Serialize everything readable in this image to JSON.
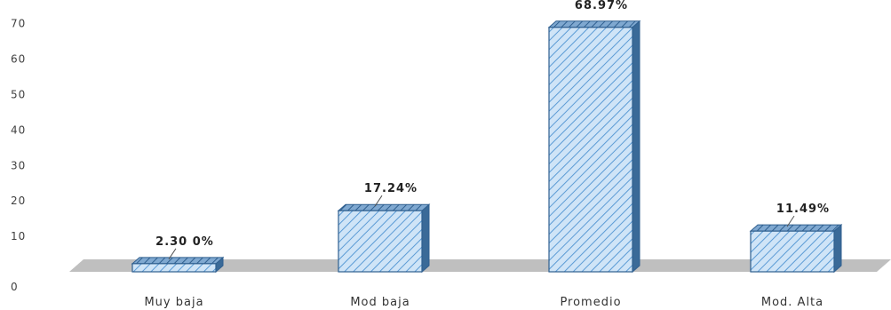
{
  "chart_data": {
    "type": "bar",
    "categories": [
      "Muy baja",
      "Mod baja",
      "Promedio",
      "Mod. Alta"
    ],
    "values": [
      2.3,
      17.24,
      68.97,
      11.49
    ],
    "data_labels": [
      "2.30 0%",
      "17.24%",
      "68.97%",
      "11.49%"
    ],
    "y_ticks": [
      "0",
      "10",
      "20",
      "30",
      "40",
      "50",
      "60",
      "70"
    ],
    "ylim": [
      0,
      70
    ],
    "grid": false,
    "legend": "none",
    "colors": {
      "bar_fill": "#cfe4f7",
      "bar_hatch": "#5b9bd5",
      "bar_edge": "#2f5f8f",
      "bar_top": "#4f7fae",
      "bar_side": "#3a6a98",
      "floor": "#bfbfbf"
    }
  }
}
